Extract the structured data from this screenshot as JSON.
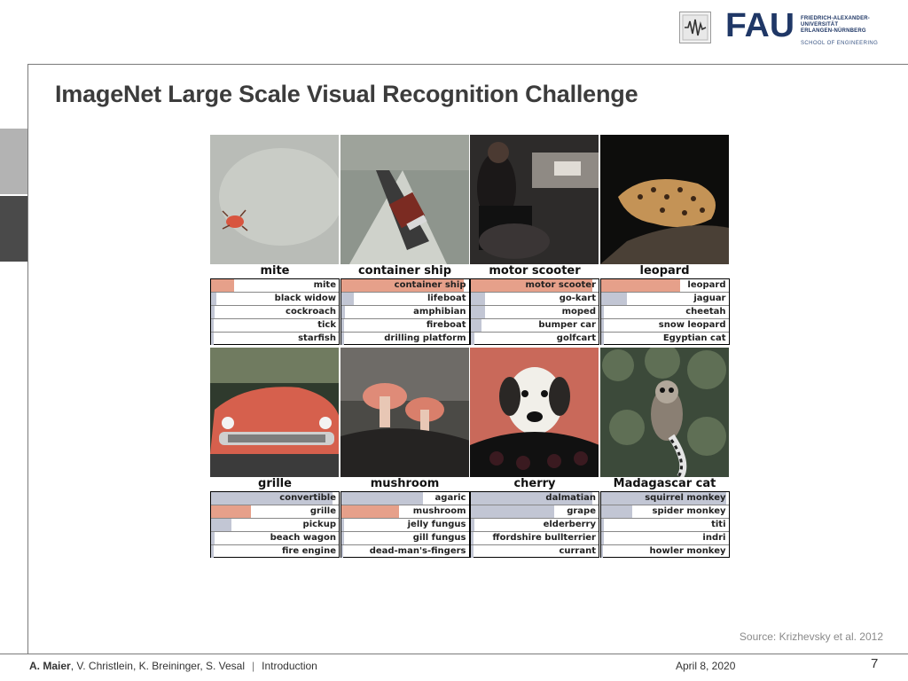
{
  "header": {
    "logo_lines": [
      "FRIEDRICH-ALEXANDER-",
      "UNIVERSITÄT",
      "ERLANGEN-NÜRNBERG"
    ],
    "logo_school": "SCHOOL OF ENGINEERING",
    "logo_mark": "FAU"
  },
  "slide": {
    "title": "ImageNet Large Scale Visual Recognition Challenge",
    "source": "Source: Krizhevsky et al. 2012"
  },
  "grid": [
    {
      "label": "mite",
      "scene": "mite",
      "predictions": [
        {
          "text": "mite",
          "score": 0.18,
          "correct": true
        },
        {
          "text": "black widow",
          "score": 0.04,
          "correct": false
        },
        {
          "text": "cockroach",
          "score": 0.03,
          "correct": false
        },
        {
          "text": "tick",
          "score": 0.02,
          "correct": false
        },
        {
          "text": "starfish",
          "score": 0.02,
          "correct": false
        }
      ]
    },
    {
      "label": "container ship",
      "scene": "ship",
      "predictions": [
        {
          "text": "container ship",
          "score": 0.96,
          "correct": true
        },
        {
          "text": "lifeboat",
          "score": 0.1,
          "correct": false
        },
        {
          "text": "amphibian",
          "score": 0.03,
          "correct": false
        },
        {
          "text": "fireboat",
          "score": 0.02,
          "correct": false
        },
        {
          "text": "drilling platform",
          "score": 0.02,
          "correct": false
        }
      ]
    },
    {
      "label": "motor scooter",
      "scene": "scooter",
      "predictions": [
        {
          "text": "motor scooter",
          "score": 0.95,
          "correct": true
        },
        {
          "text": "go-kart",
          "score": 0.11,
          "correct": false
        },
        {
          "text": "moped",
          "score": 0.11,
          "correct": false
        },
        {
          "text": "bumper car",
          "score": 0.08,
          "correct": false
        },
        {
          "text": "golfcart",
          "score": 0.03,
          "correct": false
        }
      ]
    },
    {
      "label": "leopard",
      "scene": "leopard",
      "predictions": [
        {
          "text": "leopard",
          "score": 0.62,
          "correct": true
        },
        {
          "text": "jaguar",
          "score": 0.2,
          "correct": false
        },
        {
          "text": "cheetah",
          "score": 0.02,
          "correct": false
        },
        {
          "text": "snow leopard",
          "score": 0.02,
          "correct": false
        },
        {
          "text": "Egyptian cat",
          "score": 0.02,
          "correct": false
        }
      ]
    },
    {
      "label": "grille",
      "scene": "car",
      "predictions": [
        {
          "text": "convertible",
          "score": 0.95,
          "correct": false
        },
        {
          "text": "grille",
          "score": 0.31,
          "correct": true
        },
        {
          "text": "pickup",
          "score": 0.16,
          "correct": false
        },
        {
          "text": "beach wagon",
          "score": 0.03,
          "correct": false
        },
        {
          "text": "fire engine",
          "score": 0.02,
          "correct": false
        }
      ]
    },
    {
      "label": "mushroom",
      "scene": "mushroom",
      "predictions": [
        {
          "text": "agaric",
          "score": 0.64,
          "correct": false
        },
        {
          "text": "mushroom",
          "score": 0.45,
          "correct": true
        },
        {
          "text": "jelly fungus",
          "score": 0.02,
          "correct": false
        },
        {
          "text": "gill fungus",
          "score": 0.02,
          "correct": false
        },
        {
          "text": "dead-man's-fingers",
          "score": 0.01,
          "correct": false
        }
      ]
    },
    {
      "label": "cherry",
      "scene": "dalmatian",
      "predictions": [
        {
          "text": "dalmatian",
          "score": 0.95,
          "correct": false
        },
        {
          "text": "grape",
          "score": 0.65,
          "correct": false
        },
        {
          "text": "elderberry",
          "score": 0.03,
          "correct": false
        },
        {
          "text": "ffordshire bullterrier",
          "score": 0.02,
          "correct": false
        },
        {
          "text": "currant",
          "score": 0.02,
          "correct": false
        }
      ]
    },
    {
      "label": "Madagascar cat",
      "scene": "lemur",
      "predictions": [
        {
          "text": "squirrel monkey",
          "score": 0.98,
          "correct": false
        },
        {
          "text": "spider monkey",
          "score": 0.24,
          "correct": false
        },
        {
          "text": "titi",
          "score": 0.02,
          "correct": false
        },
        {
          "text": "indri",
          "score": 0.02,
          "correct": false
        },
        {
          "text": "howler monkey",
          "score": 0.01,
          "correct": false
        }
      ]
    }
  ],
  "footer": {
    "lead_author": "A. Maier",
    "co_authors": ", V. Christlein, K. Breininger, S. Vesal",
    "separator": "|",
    "section": "Introduction",
    "date": "April 8, 2020",
    "page": "7"
  }
}
